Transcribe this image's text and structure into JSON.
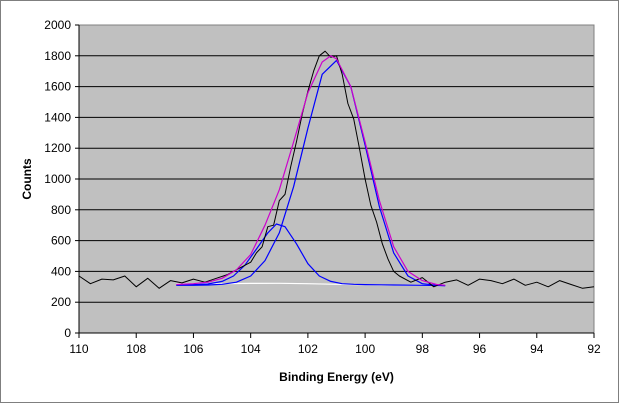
{
  "chart_data": {
    "type": "line",
    "title": "",
    "xlabel": "Binding Energy (eV)",
    "ylabel": "Counts",
    "xlim": [
      110,
      92
    ],
    "x_reversed": true,
    "ylim": [
      0,
      2000
    ],
    "x_ticks": [
      110,
      108,
      106,
      104,
      102,
      100,
      98,
      96,
      94,
      92
    ],
    "y_ticks": [
      0,
      200,
      400,
      600,
      800,
      1000,
      1200,
      1400,
      1600,
      1800,
      2000
    ],
    "grid": "horizontal",
    "legend": "none",
    "plot_background": "#c0c0c0",
    "series": [
      {
        "role": "raw-spectrum",
        "color": "#000000",
        "x": [
          110.0,
          109.6,
          109.2,
          108.8,
          108.4,
          108.0,
          107.6,
          107.2,
          106.8,
          106.4,
          106.0,
          105.6,
          105.2,
          104.8,
          104.4,
          104.0,
          103.8,
          103.6,
          103.4,
          103.2,
          103.0,
          102.8,
          102.6,
          102.4,
          102.2,
          102.0,
          101.8,
          101.6,
          101.4,
          101.2,
          101.0,
          100.8,
          100.6,
          100.4,
          100.2,
          100.0,
          99.8,
          99.6,
          99.4,
          99.2,
          99.0,
          98.8,
          98.4,
          98.0,
          97.6,
          97.2,
          96.8,
          96.4,
          96.0,
          95.6,
          95.2,
          94.8,
          94.4,
          94.0,
          93.6,
          93.2,
          92.8,
          92.4,
          92.0
        ],
        "values": [
          370,
          320,
          350,
          345,
          370,
          300,
          355,
          290,
          340,
          325,
          350,
          330,
          355,
          380,
          420,
          460,
          520,
          560,
          690,
          700,
          860,
          900,
          1080,
          1240,
          1420,
          1570,
          1700,
          1800,
          1830,
          1790,
          1800,
          1680,
          1490,
          1390,
          1200,
          1000,
          830,
          720,
          580,
          480,
          400,
          370,
          330,
          360,
          300,
          330,
          345,
          310,
          350,
          340,
          320,
          350,
          310,
          330,
          300,
          340,
          315,
          290,
          300
        ]
      },
      {
        "role": "envelope-fit",
        "color": "#cc00cc",
        "x": [
          106.6,
          106.0,
          105.5,
          105.0,
          104.5,
          104.0,
          103.5,
          103.0,
          102.5,
          102.0,
          101.5,
          101.2,
          101.0,
          100.5,
          100.0,
          99.5,
          99.0,
          98.5,
          98.0,
          97.5,
          97.2
        ],
        "values": [
          315,
          320,
          330,
          355,
          410,
          510,
          700,
          930,
          1240,
          1560,
          1760,
          1800,
          1780,
          1600,
          1240,
          860,
          560,
          400,
          340,
          315,
          310
        ]
      },
      {
        "role": "component-peak-1",
        "color": "#0000ff",
        "x": [
          106.6,
          106.0,
          105.5,
          105.0,
          104.5,
          104.0,
          103.5,
          103.0,
          102.5,
          102.0,
          101.5,
          101.0,
          100.5,
          100.0,
          99.5,
          99.0,
          98.5,
          98.0,
          97.5,
          97.2
        ],
        "values": [
          310,
          310,
          312,
          316,
          330,
          370,
          470,
          650,
          950,
          1330,
          1680,
          1770,
          1600,
          1220,
          820,
          520,
          370,
          320,
          310,
          308
        ]
      },
      {
        "role": "component-peak-2",
        "color": "#0000ff",
        "x": [
          106.6,
          106.0,
          105.5,
          105.0,
          104.6,
          104.2,
          103.8,
          103.4,
          103.1,
          102.8,
          102.4,
          102.0,
          101.6,
          101.2,
          100.8,
          100.4,
          100.0,
          99.0,
          98.0,
          97.2
        ],
        "values": [
          312,
          314,
          318,
          335,
          370,
          440,
          545,
          650,
          708,
          690,
          580,
          450,
          370,
          335,
          320,
          316,
          314,
          312,
          310,
          308
        ]
      },
      {
        "role": "background",
        "color": "#ffffff",
        "x": [
          106.6,
          105.0,
          104.0,
          103.0,
          102.0,
          101.0,
          100.0,
          99.0,
          98.0,
          97.2
        ],
        "values": [
          318,
          320,
          322,
          323,
          320,
          316,
          313,
          311,
          309,
          308
        ]
      }
    ]
  }
}
